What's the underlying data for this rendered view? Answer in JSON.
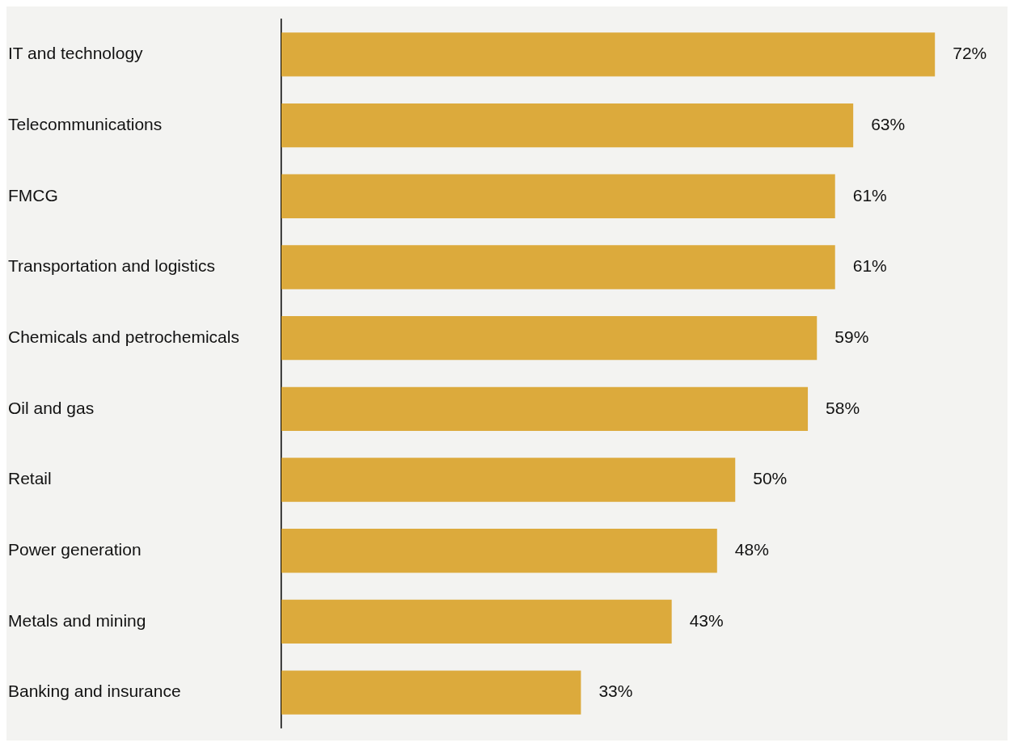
{
  "chart_data": {
    "type": "bar",
    "orientation": "horizontal",
    "categories": [
      "IT and technology",
      "Telecommunications",
      "FMCG",
      "Transportation and logistics",
      "Chemicals and petrochemicals",
      "Oil and gas",
      "Retail",
      "Power generation",
      "Metals and mining",
      "Banking and insurance"
    ],
    "values": [
      72,
      63,
      61,
      61,
      59,
      58,
      50,
      48,
      43,
      33
    ],
    "value_labels": [
      "72%",
      "63%",
      "61%",
      "61%",
      "59%",
      "58%",
      "50%",
      "48%",
      "43%",
      "33%"
    ],
    "color": "#dcaa3c"
  }
}
